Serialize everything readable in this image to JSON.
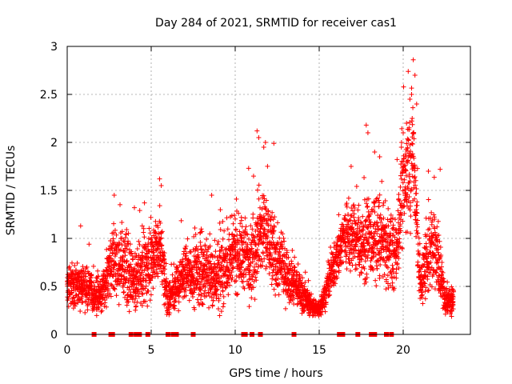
{
  "chart_data": {
    "type": "scatter",
    "title": "Day 284 of 2021, SRMTID for receiver cas1",
    "xlabel": "GPS time / hours",
    "ylabel": "SRMTID / TECUs",
    "xlim": [
      0,
      24
    ],
    "ylim": [
      0,
      3
    ],
    "x_ticks": [
      0,
      5,
      10,
      15,
      20
    ],
    "x_tick_labels": [
      "0",
      "5",
      "10",
      "15",
      "20"
    ],
    "y_ticks": [
      0,
      0.5,
      1,
      1.5,
      2,
      2.5,
      3
    ],
    "y_tick_labels": [
      "0",
      "0.5",
      "1",
      "1.5",
      "2",
      "2.5",
      "3"
    ],
    "grid": true,
    "marker": "+",
    "color": "#ff0000",
    "envelope": [
      {
        "x": 0.0,
        "center": 0.5,
        "spread": 0.3
      },
      {
        "x": 1.0,
        "center": 0.5,
        "spread": 0.35
      },
      {
        "x": 2.0,
        "center": 0.4,
        "spread": 0.25
      },
      {
        "x": 2.7,
        "center": 0.75,
        "spread": 0.55
      },
      {
        "x": 3.5,
        "center": 0.7,
        "spread": 0.55
      },
      {
        "x": 4.0,
        "center": 0.55,
        "spread": 0.4
      },
      {
        "x": 4.5,
        "center": 0.7,
        "spread": 0.6
      },
      {
        "x": 5.0,
        "center": 0.8,
        "spread": 0.5
      },
      {
        "x": 5.5,
        "center": 0.9,
        "spread": 0.65
      },
      {
        "x": 6.0,
        "center": 0.35,
        "spread": 0.25
      },
      {
        "x": 7.0,
        "center": 0.65,
        "spread": 0.4
      },
      {
        "x": 8.0,
        "center": 0.65,
        "spread": 0.5
      },
      {
        "x": 9.0,
        "center": 0.6,
        "spread": 0.5
      },
      {
        "x": 10.0,
        "center": 0.85,
        "spread": 0.55
      },
      {
        "x": 11.0,
        "center": 0.8,
        "spread": 0.6
      },
      {
        "x": 11.7,
        "center": 1.1,
        "spread": 0.75
      },
      {
        "x": 12.5,
        "center": 0.75,
        "spread": 0.5
      },
      {
        "x": 13.5,
        "center": 0.55,
        "spread": 0.35
      },
      {
        "x": 14.5,
        "center": 0.3,
        "spread": 0.15
      },
      {
        "x": 15.0,
        "center": 0.25,
        "spread": 0.1
      },
      {
        "x": 15.5,
        "center": 0.5,
        "spread": 0.25
      },
      {
        "x": 16.5,
        "center": 1.05,
        "spread": 0.5
      },
      {
        "x": 17.5,
        "center": 0.95,
        "spread": 0.55
      },
      {
        "x": 18.5,
        "center": 1.0,
        "spread": 0.65
      },
      {
        "x": 19.5,
        "center": 0.8,
        "spread": 0.5
      },
      {
        "x": 20.0,
        "center": 1.5,
        "spread": 0.8
      },
      {
        "x": 20.6,
        "center": 1.9,
        "spread": 0.9
      },
      {
        "x": 21.0,
        "center": 0.5,
        "spread": 0.4
      },
      {
        "x": 21.8,
        "center": 1.0,
        "spread": 0.7
      },
      {
        "x": 22.5,
        "center": 0.35,
        "spread": 0.25
      },
      {
        "x": 23.0,
        "center": 0.35,
        "spread": 0.2
      }
    ],
    "spikes": [
      {
        "x": 20.3,
        "y": 2.74
      },
      {
        "x": 20.4,
        "y": 2.45
      },
      {
        "x": 20.5,
        "y": 2.5
      },
      {
        "x": 20.6,
        "y": 2.86
      },
      {
        "x": 20.7,
        "y": 2.7
      },
      {
        "x": 20.2,
        "y": 2.2
      },
      {
        "x": 19.9,
        "y": 2.0
      },
      {
        "x": 20.0,
        "y": 2.1
      },
      {
        "x": 20.8,
        "y": 2.4
      },
      {
        "x": 11.3,
        "y": 2.12
      },
      {
        "x": 11.4,
        "y": 2.05
      },
      {
        "x": 11.8,
        "y": 2.0
      },
      {
        "x": 12.3,
        "y": 1.99
      },
      {
        "x": 11.7,
        "y": 1.95
      },
      {
        "x": 17.8,
        "y": 2.18
      },
      {
        "x": 17.9,
        "y": 2.1
      },
      {
        "x": 18.3,
        "y": 1.9
      },
      {
        "x": 18.6,
        "y": 1.85
      },
      {
        "x": 5.5,
        "y": 1.62
      },
      {
        "x": 5.6,
        "y": 1.55
      },
      {
        "x": 10.8,
        "y": 1.73
      },
      {
        "x": 16.9,
        "y": 1.75
      },
      {
        "x": 22.2,
        "y": 1.72
      },
      {
        "x": 21.5,
        "y": 1.7
      },
      {
        "x": 2.8,
        "y": 1.45
      },
      {
        "x": 4.6,
        "y": 1.37
      },
      {
        "x": 4.0,
        "y": 1.32
      },
      {
        "x": 8.6,
        "y": 1.45
      },
      {
        "x": 0.8,
        "y": 1.13
      },
      {
        "x": 1.3,
        "y": 0.94
      }
    ],
    "baseline_markers_x": [
      1.6,
      2.6,
      2.7,
      3.8,
      4.1,
      4.3,
      4.8,
      6.0,
      6.3,
      6.5,
      7.5,
      10.5,
      10.6,
      11.0,
      11.5,
      13.5,
      16.2,
      16.4,
      17.3,
      18.1,
      18.3,
      19.0,
      19.3
    ]
  }
}
